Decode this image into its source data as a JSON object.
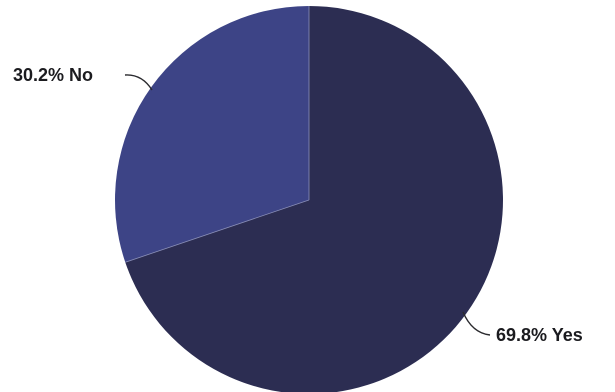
{
  "chart_data": {
    "type": "pie",
    "title": "",
    "slices": [
      {
        "category": "Yes",
        "value": 69.8,
        "label": "69.8% Yes",
        "color": "#2c2d52"
      },
      {
        "category": "No",
        "value": 30.2,
        "label": "30.2% No",
        "color": "#3d4486"
      }
    ],
    "start_angle": "12 o'clock",
    "direction": "clockwise",
    "legend": "none"
  }
}
